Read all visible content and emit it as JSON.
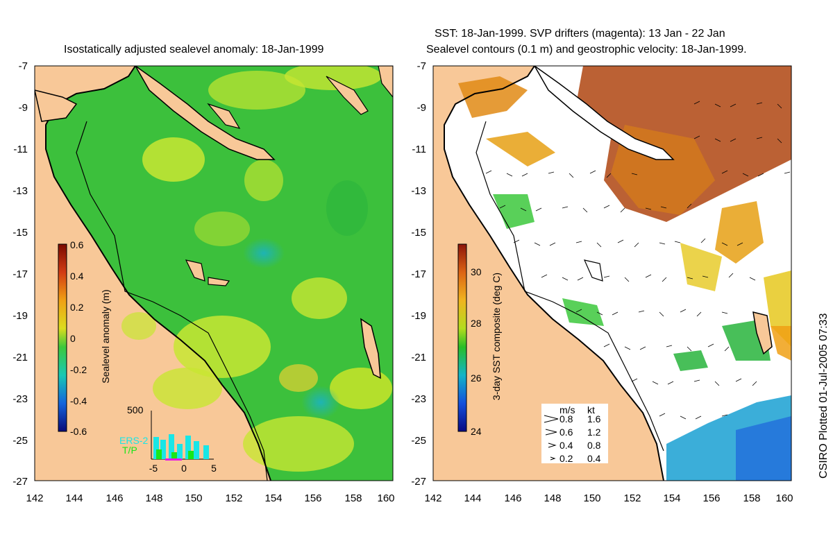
{
  "left_panel": {
    "title": "Isostatically adjusted sealevel anomaly: 18-Jan-1999",
    "x_ticks": [
      "142",
      "144",
      "146",
      "148",
      "150",
      "152",
      "154",
      "156",
      "158",
      "160"
    ],
    "y_ticks": [
      "-7",
      "-9",
      "-11",
      "-13",
      "-15",
      "-17",
      "-19",
      "-21",
      "-23",
      "-25",
      "-27"
    ],
    "colorbar": {
      "label": "Sealevel anomaly (m)",
      "ticks": [
        "0.6",
        "0.4",
        "0.2",
        "0",
        "-0.2",
        "-0.4",
        "-0.6"
      ]
    },
    "histogram": {
      "y_max_label": "500",
      "x_ticks": [
        "-5",
        "0",
        "5"
      ],
      "legend": [
        "ERS-2",
        "T/P"
      ],
      "ers2_color": "#19e6e6",
      "tp_color": "#19e619"
    }
  },
  "right_panel": {
    "title_line1": "SST: 18-Jan-1999. SVP drifters (magenta): 13 Jan - 22 Jan",
    "title_line2": "Sealevel contours (0.1 m) and geostrophic velocity: 18-Jan-1999.",
    "x_ticks": [
      "142",
      "144",
      "146",
      "148",
      "150",
      "152",
      "154",
      "156",
      "158",
      "160"
    ],
    "y_ticks": [
      "-7",
      "-9",
      "-11",
      "-13",
      "-15",
      "-17",
      "-19",
      "-21",
      "-23",
      "-25",
      "-27"
    ],
    "colorbar": {
      "label": "3-day SST composite (deg C)",
      "ticks": [
        "30",
        "28",
        "26",
        "24"
      ]
    },
    "velocity_legend": {
      "headers": [
        "m/s",
        "kt"
      ],
      "rows": [
        {
          "ms": "0.8",
          "kt": "1.6"
        },
        {
          "ms": "0.6",
          "kt": "1.2"
        },
        {
          "ms": "0.4",
          "kt": "0.8"
        },
        {
          "ms": "0.2",
          "kt": "0.4"
        }
      ]
    }
  },
  "credit": "CSIRO Plotted 01-Jul-2005 07:33",
  "colors": {
    "land": "#f8c898",
    "sea_green": "#3cc03c",
    "sea_yellow": "#c8e632",
    "warm_orange": "#e08a14",
    "warm_brown": "#b4501e"
  }
}
